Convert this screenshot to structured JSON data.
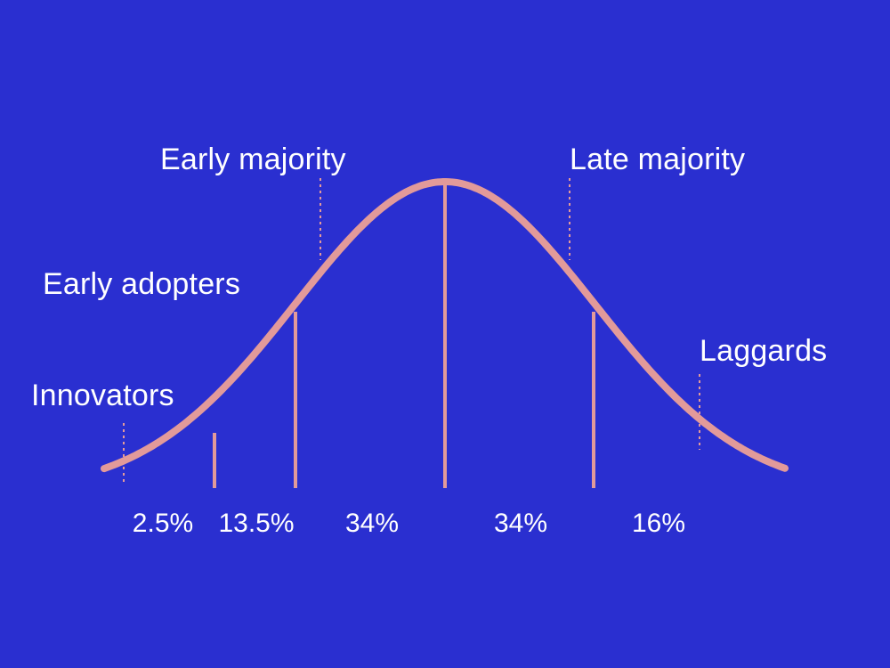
{
  "colors": {
    "background": "#2a2fd0",
    "curve": "#e29a9a",
    "text": "#ffffff"
  },
  "segments": [
    {
      "label": "Innovators",
      "share": "2.5%"
    },
    {
      "label": "Early adopters",
      "share": "13.5%"
    },
    {
      "label": "Early majority",
      "share": "34%"
    },
    {
      "label": "Late majority",
      "share": "34%"
    },
    {
      "label": "Laggards",
      "share": "16%"
    }
  ]
}
